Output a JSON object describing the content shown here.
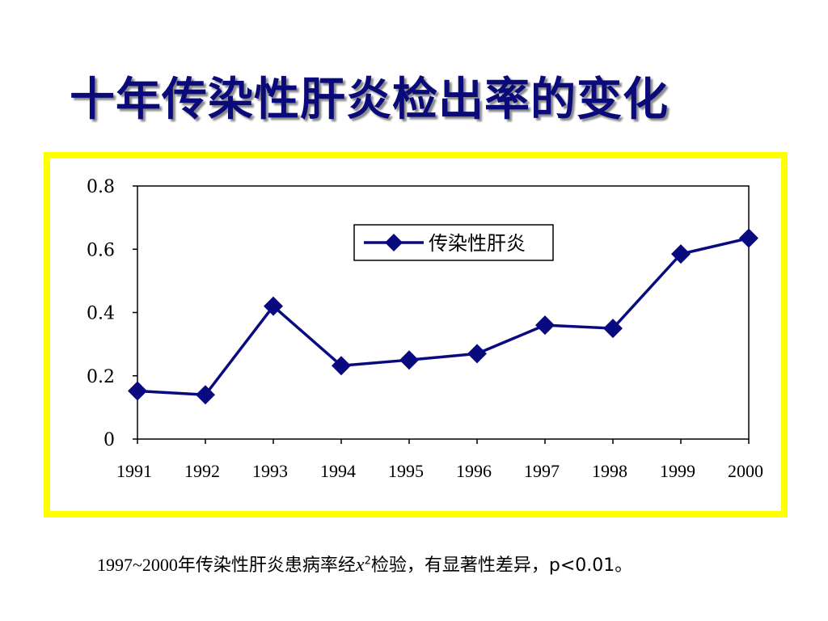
{
  "title": "十年传染性肝炎检出率的变化",
  "chart_data": {
    "type": "line",
    "title": "",
    "xlabel": "",
    "ylabel": "",
    "categories": [
      "1991",
      "1992",
      "1993",
      "1994",
      "1995",
      "1996",
      "1997",
      "1998",
      "1999",
      "2000"
    ],
    "series": [
      {
        "name": "传染性肝炎",
        "values": [
          0.152,
          0.14,
          0.42,
          0.232,
          0.25,
          0.27,
          0.36,
          0.35,
          0.585,
          0.635
        ],
        "color": "#0a0a80",
        "marker": "diamond"
      }
    ],
    "ylim": [
      0,
      0.8
    ],
    "yticks": [
      "0",
      "0.2",
      "0.4",
      "0.6",
      "0.8"
    ],
    "grid": false,
    "legend_position": "top-center",
    "frame_color": "#ffff00"
  },
  "footnote": {
    "prefix": "1997~2000年传染性肝炎患病率经",
    "chi_symbol": "x",
    "chi_exponent": "2",
    "middle": "检验，有显著性差异，",
    "p_value": "p<0.01。"
  }
}
